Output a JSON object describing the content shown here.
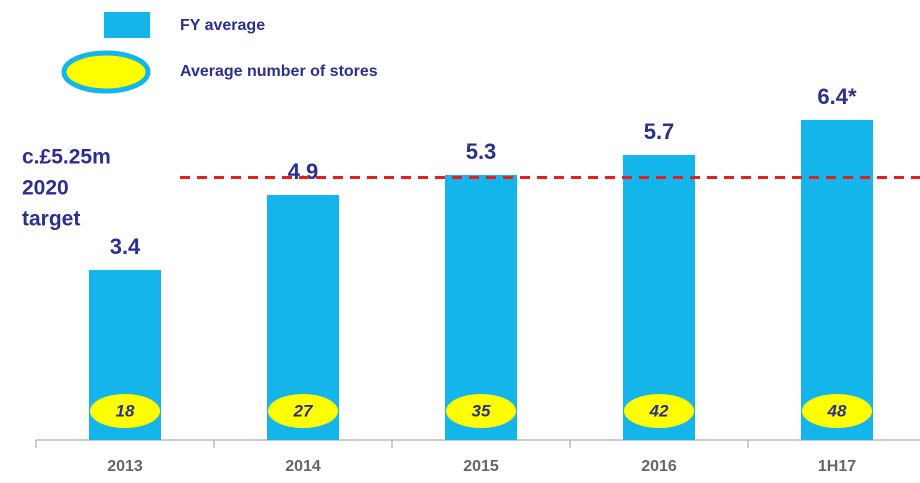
{
  "chart_data": {
    "type": "bar",
    "categories": [
      "2013",
      "2014",
      "2015",
      "2016",
      "1H17"
    ],
    "series": [
      {
        "name": "FY average",
        "color": "#13b5ea",
        "values": [
          3.4,
          4.9,
          5.3,
          5.7,
          6.4
        ],
        "value_labels": [
          "3.4",
          "4.9",
          "5.3",
          "5.7",
          "6.4*"
        ]
      },
      {
        "name": "Average number of stores",
        "color": "#ffff00",
        "values": [
          18,
          27,
          35,
          42,
          48
        ]
      }
    ],
    "ylim": [
      0,
      8.8
    ],
    "target": {
      "value": 5.25,
      "label_lines": [
        "c.£5.25m",
        "2020",
        "target"
      ],
      "color": "#e3201b"
    }
  }
}
